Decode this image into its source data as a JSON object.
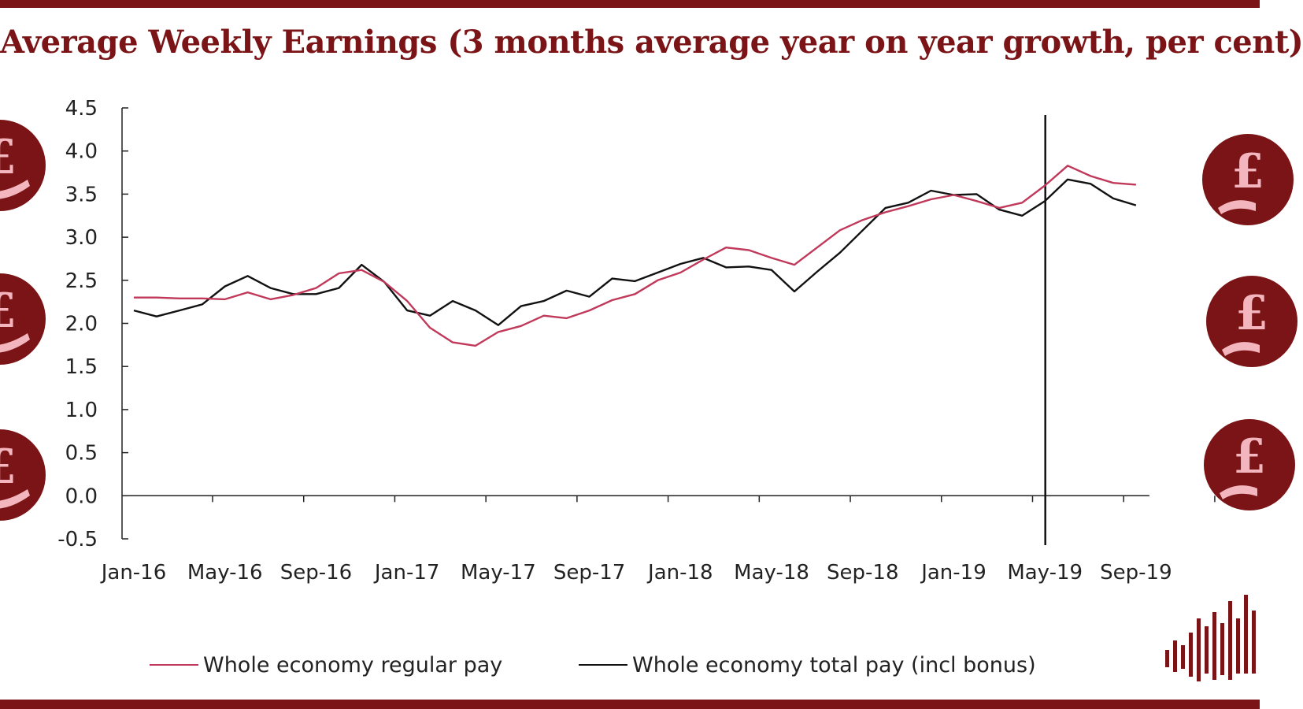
{
  "title": "Average Weekly Earnings (3 months average year on year growth, per cent)",
  "colors": {
    "brand": "#7b1416",
    "coin_fill": "#7b1416",
    "coin_glyph": "#f4b6be",
    "regular": "#c0395a",
    "total": "#111111"
  },
  "icons": [
    "pound-coin-hand-icon",
    "bar-logo-icon"
  ],
  "chart_data": {
    "type": "line",
    "title": "Average Weekly Earnings (3 months average year on year growth, per cent)",
    "x": [
      "Jan-16",
      "Feb-16",
      "Mar-16",
      "Apr-16",
      "May-16",
      "Jun-16",
      "Jul-16",
      "Aug-16",
      "Sep-16",
      "Oct-16",
      "Nov-16",
      "Dec-16",
      "Jan-17",
      "Feb-17",
      "Mar-17",
      "Apr-17",
      "May-17",
      "Jun-17",
      "Jul-17",
      "Aug-17",
      "Sep-17",
      "Oct-17",
      "Nov-17",
      "Dec-17",
      "Jan-18",
      "Feb-18",
      "Mar-18",
      "Apr-18",
      "May-18",
      "Jun-18",
      "Jul-18",
      "Aug-18",
      "Sep-18",
      "Oct-18",
      "Nov-18",
      "Dec-18",
      "Jan-19",
      "Feb-19",
      "Mar-19",
      "Apr-19",
      "May-19",
      "Jun-19",
      "Jul-19",
      "Aug-19",
      "Sep-19"
    ],
    "x_tick_labels": [
      "Jan-16",
      "May-16",
      "Sep-16",
      "Jan-17",
      "May-17",
      "Sep-17",
      "Jan-18",
      "May-18",
      "Sep-18",
      "Jan-19",
      "May-19",
      "Sep-19"
    ],
    "series": [
      {
        "name": "Whole economy regular pay",
        "color": "#c0395a",
        "values": [
          2.3,
          2.3,
          2.29,
          2.29,
          2.28,
          2.36,
          2.28,
          2.33,
          2.41,
          2.58,
          2.62,
          2.48,
          2.26,
          1.95,
          1.78,
          1.74,
          1.9,
          1.97,
          2.09,
          2.06,
          2.15,
          2.27,
          2.34,
          2.5,
          2.59,
          2.74,
          2.88,
          2.85,
          2.76,
          2.68,
          2.88,
          3.08,
          3.2,
          3.29,
          3.36,
          3.44,
          3.49,
          3.42,
          3.34,
          3.4,
          3.6,
          3.83,
          3.71,
          3.63,
          3.61
        ]
      },
      {
        "name": "Whole economy total pay (incl bonus)",
        "color": "#111111",
        "values": [
          2.15,
          2.08,
          2.15,
          2.22,
          2.43,
          2.55,
          2.41,
          2.34,
          2.34,
          2.41,
          2.68,
          2.48,
          2.15,
          2.09,
          2.26,
          2.15,
          1.98,
          2.2,
          2.26,
          2.38,
          2.31,
          2.52,
          2.49,
          2.59,
          2.69,
          2.76,
          2.65,
          2.66,
          2.62,
          2.37,
          2.6,
          2.82,
          3.08,
          3.34,
          3.4,
          3.54,
          3.49,
          3.5,
          3.32,
          3.25,
          3.42,
          3.67,
          3.62,
          3.45,
          3.37
        ]
      }
    ],
    "ylim": [
      -0.5,
      4.5
    ],
    "y_ticks": [
      "-0.5",
      "0.0",
      "0.5",
      "1.0",
      "1.5",
      "2.0",
      "2.5",
      "3.0",
      "3.5",
      "4.0",
      "4.5"
    ],
    "vertical_marker_x": "May-19",
    "legend_position": "bottom",
    "grid": false
  }
}
